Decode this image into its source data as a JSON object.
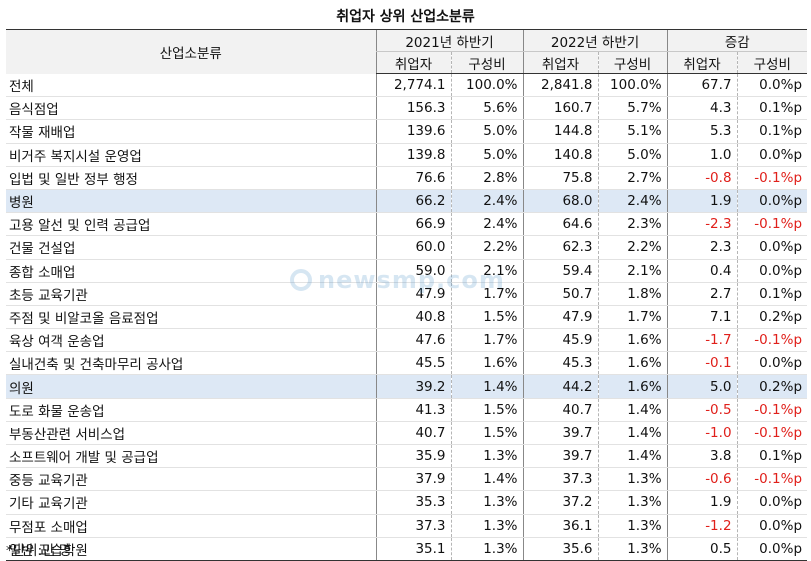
{
  "title": "취업자 상위 산업소분류",
  "header": {
    "col_industry": "산업소분류",
    "group_2021": "2021년 하반기",
    "group_2022": "2022년 하반기",
    "group_change": "증감",
    "sub_employed": "취업자",
    "sub_ratio": "구성비"
  },
  "rows": [
    {
      "name": "전체",
      "e21": "2,774.1",
      "r21": "100.0%",
      "e22": "2,841.8",
      "r22": "100.0%",
      "de": "67.7",
      "dr": "0.0%p",
      "hl": false,
      "neg": false
    },
    {
      "name": "음식점업",
      "e21": "156.3",
      "r21": "5.6%",
      "e22": "160.7",
      "r22": "5.7%",
      "de": "4.3",
      "dr": "0.1%p",
      "hl": false,
      "neg": false
    },
    {
      "name": "작물 재배업",
      "e21": "139.6",
      "r21": "5.0%",
      "e22": "144.8",
      "r22": "5.1%",
      "de": "5.3",
      "dr": "0.1%p",
      "hl": false,
      "neg": false
    },
    {
      "name": "비거주 복지시설 운영업",
      "e21": "139.8",
      "r21": "5.0%",
      "e22": "140.8",
      "r22": "5.0%",
      "de": "1.0",
      "dr": "0.0%p",
      "hl": false,
      "neg": false
    },
    {
      "name": "입법 및 일반 정부 행정",
      "e21": "76.6",
      "r21": "2.8%",
      "e22": "75.8",
      "r22": "2.7%",
      "de": "-0.8",
      "dr": "-0.1%p",
      "hl": false,
      "neg": true
    },
    {
      "name": "병원",
      "e21": "66.2",
      "r21": "2.4%",
      "e22": "68.0",
      "r22": "2.4%",
      "de": "1.9",
      "dr": "0.0%p",
      "hl": true,
      "neg": false
    },
    {
      "name": "고용 알선 및 인력 공급업",
      "e21": "66.9",
      "r21": "2.4%",
      "e22": "64.6",
      "r22": "2.3%",
      "de": "-2.3",
      "dr": "-0.1%p",
      "hl": false,
      "neg": true
    },
    {
      "name": "건물 건설업",
      "e21": "60.0",
      "r21": "2.2%",
      "e22": "62.3",
      "r22": "2.2%",
      "de": "2.3",
      "dr": "0.0%p",
      "hl": false,
      "neg": false
    },
    {
      "name": "종합 소매업",
      "e21": "59.0",
      "r21": "2.1%",
      "e22": "59.4",
      "r22": "2.1%",
      "de": "0.4",
      "dr": "0.0%p",
      "hl": false,
      "neg": false
    },
    {
      "name": "초등 교육기관",
      "e21": "47.9",
      "r21": "1.7%",
      "e22": "50.7",
      "r22": "1.8%",
      "de": "2.7",
      "dr": "0.1%p",
      "hl": false,
      "neg": false
    },
    {
      "name": "주점 및 비알코올 음료점업",
      "e21": "40.8",
      "r21": "1.5%",
      "e22": "47.9",
      "r22": "1.7%",
      "de": "7.1",
      "dr": "0.2%p",
      "hl": false,
      "neg": false
    },
    {
      "name": "육상 여객 운송업",
      "e21": "47.6",
      "r21": "1.7%",
      "e22": "45.9",
      "r22": "1.6%",
      "de": "-1.7",
      "dr": "-0.1%p",
      "hl": false,
      "neg": true
    },
    {
      "name": "실내건축 및 건축마무리 공사업",
      "e21": "45.5",
      "r21": "1.6%",
      "e22": "45.3",
      "r22": "1.6%",
      "de": "-0.1",
      "dr": "0.0%p",
      "hl": false,
      "neg": "de"
    },
    {
      "name": "의원",
      "e21": "39.2",
      "r21": "1.4%",
      "e22": "44.2",
      "r22": "1.6%",
      "de": "5.0",
      "dr": "0.2%p",
      "hl": true,
      "neg": false
    },
    {
      "name": "도로 화물 운송업",
      "e21": "41.3",
      "r21": "1.5%",
      "e22": "40.7",
      "r22": "1.4%",
      "de": "-0.5",
      "dr": "-0.1%p",
      "hl": false,
      "neg": true
    },
    {
      "name": "부동산관련 서비스업",
      "e21": "40.7",
      "r21": "1.5%",
      "e22": "39.7",
      "r22": "1.4%",
      "de": "-1.0",
      "dr": "-0.1%p",
      "hl": false,
      "neg": true
    },
    {
      "name": "소프트웨어 개발 및 공급업",
      "e21": "35.9",
      "r21": "1.3%",
      "e22": "39.7",
      "r22": "1.4%",
      "de": "3.8",
      "dr": "0.1%p",
      "hl": false,
      "neg": false
    },
    {
      "name": "중등 교육기관",
      "e21": "37.9",
      "r21": "1.4%",
      "e22": "37.3",
      "r22": "1.3%",
      "de": "-0.6",
      "dr": "-0.1%p",
      "hl": false,
      "neg": true
    },
    {
      "name": "기타 교육기관",
      "e21": "35.3",
      "r21": "1.3%",
      "e22": "37.2",
      "r22": "1.3%",
      "de": "1.9",
      "dr": "0.0%p",
      "hl": false,
      "neg": false
    },
    {
      "name": "무점포 소매업",
      "e21": "37.3",
      "r21": "1.3%",
      "e22": "36.1",
      "r22": "1.3%",
      "de": "-1.2",
      "dr": "0.0%p",
      "hl": false,
      "neg": "de"
    },
    {
      "name": "일반 교습학원",
      "e21": "35.1",
      "r21": "1.3%",
      "e22": "35.6",
      "r22": "1.3%",
      "de": "0.5",
      "dr": "0.0%p",
      "hl": false,
      "neg": false
    }
  ],
  "note": "*단위:만 명",
  "watermark": "newsmp.com",
  "colors": {
    "negative": "#e0201b",
    "highlight_row": "#dde8f5",
    "header_bg": "#f2f2f2"
  }
}
